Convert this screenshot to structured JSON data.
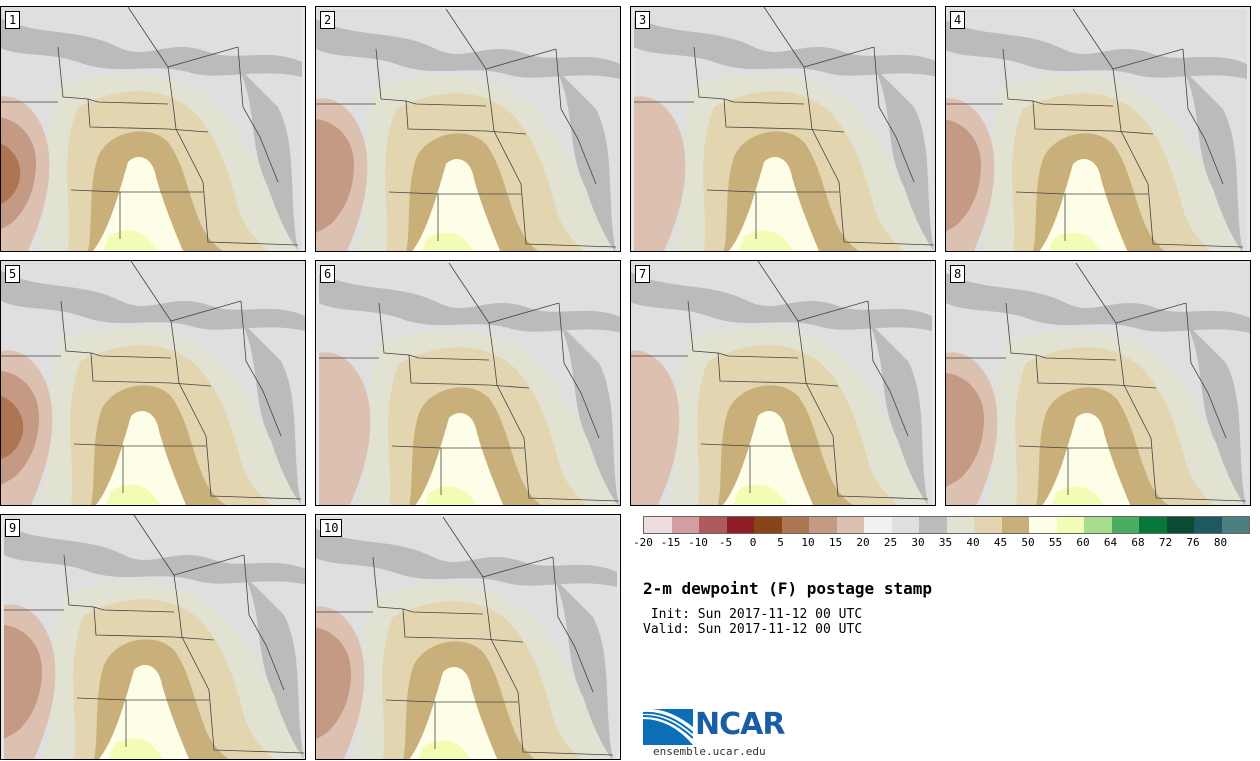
{
  "figure": {
    "title": "2-m dewpoint (F) postage stamp",
    "init": " Init: Sun 2017-11-12 00 UTC",
    "valid": "Valid: Sun 2017-11-12 00 UTC",
    "logo_text": "NCAR",
    "logo_url": "ensemble.ucar.edu"
  },
  "members": [
    {
      "label": "1",
      "dry_strength": 3
    },
    {
      "label": "2",
      "dry_strength": 2
    },
    {
      "label": "3",
      "dry_strength": 1
    },
    {
      "label": "4",
      "dry_strength": 2
    },
    {
      "label": "5",
      "dry_strength": 3
    },
    {
      "label": "6",
      "dry_strength": 1
    },
    {
      "label": "7",
      "dry_strength": 1
    },
    {
      "label": "8",
      "dry_strength": 2
    },
    {
      "label": "9",
      "dry_strength": 2
    },
    {
      "label": "10",
      "dry_strength": 2
    }
  ],
  "colorbar": {
    "ticks": [
      "-20",
      "-15",
      "-10",
      "-5",
      "0",
      "5",
      "10",
      "15",
      "20",
      "25",
      "30",
      "35",
      "40",
      "45",
      "50",
      "55",
      "60",
      "64",
      "68",
      "72",
      "76",
      "80"
    ],
    "colors": [
      "#efdcdc",
      "#d49ea0",
      "#ae5b5e",
      "#8e1f26",
      "#8a4516",
      "#ad7551",
      "#c59a84",
      "#dcc0b0",
      "#f1f1f1",
      "#dfdfdf",
      "#bbbbbb",
      "#e2e2d2",
      "#e2d5b0",
      "#c9b07a",
      "#fefee8",
      "#f3fcb4",
      "#a7dd8d",
      "#49ae5f",
      "#08773a",
      "#0d4a34",
      "#1f5861",
      "#4d7f80"
    ]
  }
}
